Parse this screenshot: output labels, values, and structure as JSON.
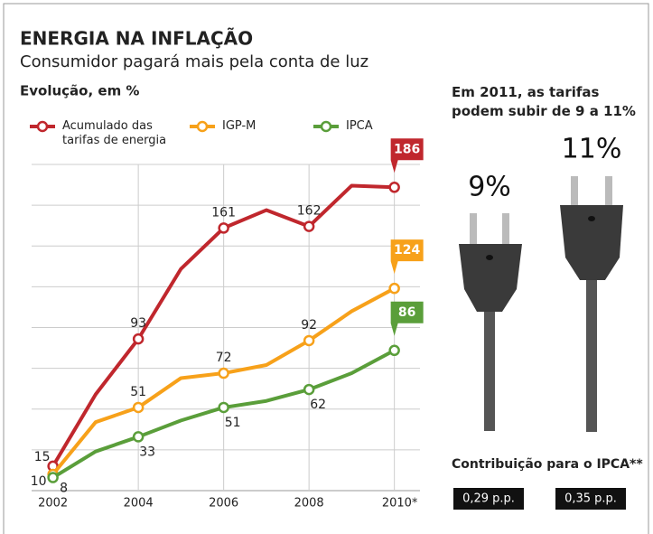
{
  "chart_data": {
    "type": "line",
    "title": "ENERGIA NA INFLAÇÃO",
    "subtitle": "Consumidor pagará mais pela conta de luz",
    "y_axis_label": "Evolução, em %",
    "x": [
      2002,
      2003,
      2004,
      2005,
      2006,
      2007,
      2008,
      2009,
      2010
    ],
    "xlim": [
      2001.5,
      2010.6
    ],
    "xticks": [
      2002,
      2004,
      2006,
      2008,
      {
        "value": 2010,
        "label": "2010*"
      }
    ],
    "ylim": [
      0,
      200
    ],
    "yticks": [
      0,
      25,
      50,
      75,
      100,
      125,
      150,
      175,
      200
    ],
    "grid": true,
    "series": [
      {
        "name": "Acumulado das tarifas de energia",
        "color": "#c0272d",
        "values": [
          15,
          59,
          93,
          136,
          161,
          172,
          162,
          187,
          186
        ],
        "value_labels": [
          "15",
          null,
          "93",
          null,
          "161",
          null,
          "162",
          null,
          "186"
        ]
      },
      {
        "name": "IGP-M",
        "color": "#f7a11a",
        "values": [
          10,
          42,
          51,
          69,
          72,
          77,
          92,
          110,
          124
        ],
        "value_labels": [
          "10",
          null,
          "51",
          null,
          "72",
          null,
          "92",
          null,
          "124"
        ]
      },
      {
        "name": "IPCA",
        "color": "#5a9e3a",
        "values": [
          8,
          24,
          33,
          43,
          51,
          55,
          62,
          72,
          86
        ],
        "value_labels": [
          "8",
          null,
          "33",
          null,
          "51",
          null,
          "62",
          null,
          "86"
        ]
      }
    ]
  },
  "side_panel": {
    "heading": "Em 2011, as tarifas podem subir de 9 a 11%",
    "plug_left": "9%",
    "plug_right": "11%",
    "contribution_title": "Contribuição para o IPCA**",
    "contribution_left": "0,29 p.p.",
    "contribution_right": "0,35 p.p."
  }
}
